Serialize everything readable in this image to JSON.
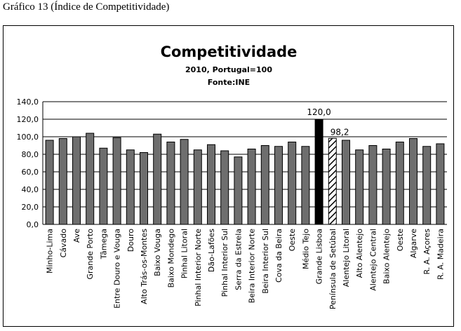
{
  "caption": "Gráfico 13 (Índice de Competitividade)",
  "chart_data": {
    "type": "bar",
    "title": "Competitividade",
    "subtitle_lines": [
      "2010, Portugal=100",
      "Fonte:INE"
    ],
    "xlabel": "",
    "ylabel": "",
    "ylim": [
      0,
      140
    ],
    "yticks": [
      "0,0",
      "20,0",
      "40,0",
      "60,0",
      "80,0",
      "100,0",
      "120,0",
      "140,0"
    ],
    "grid": true,
    "categories": [
      "Minho-Lima",
      "Cávado",
      "Ave",
      "Grande Porto",
      "Tâmega",
      "Entre Douro e Vouga",
      "Douro",
      "Alto Trás-os-Montes",
      "Baixo Vouga",
      "Baixo Mondego",
      "Pinhal Litoral",
      "Pinhal Interior Norte",
      "Dão-Lafões",
      "Pinhal Interior Sul",
      "Serra da Estrela",
      "Beira Interior Norte",
      "Beira Interior Sul",
      "Cova da Beira",
      "Oeste",
      "Médio Tejo",
      "Grande Lisboa",
      "Península de Setúbal",
      "Alentejo Litoral",
      "Alto Alentejo",
      "Alentejo Central",
      "Baixo Alentejo",
      "Oeste",
      "Algarve",
      "R. A. Açores",
      "R. A. Madeira"
    ],
    "values": [
      96,
      98,
      100,
      104,
      87,
      99,
      85,
      82,
      103,
      94,
      97,
      85,
      91,
      84,
      77,
      86,
      90,
      89,
      94,
      89,
      120.0,
      98.2,
      96,
      85,
      90,
      86,
      94,
      98,
      89,
      92
    ],
    "highlight": {
      "Grande Lisboa": {
        "style": "black",
        "label": "120,0"
      },
      "Península de Setúbal": {
        "style": "hatched",
        "label": "98,2"
      }
    },
    "bar_color": "#6e6e6e",
    "highlight_color": "#000000"
  }
}
